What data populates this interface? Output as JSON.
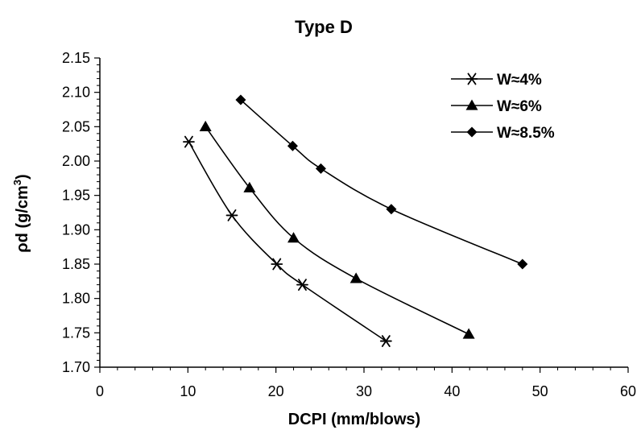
{
  "chart_data": {
    "type": "line",
    "title": "Type D",
    "xlabel": "DCPI (mm/blows)",
    "ylabel_main": "ρd (g/cm",
    "ylabel_sup": "3",
    "ylabel_close": ")",
    "xlim": [
      0,
      60
    ],
    "ylim": [
      1.7,
      2.15
    ],
    "x_ticks": [
      "0",
      "10",
      "20",
      "30",
      "40",
      "50",
      "60"
    ],
    "y_ticks": [
      "1.70",
      "1.75",
      "1.80",
      "1.85",
      "1.90",
      "1.95",
      "2.00",
      "2.05",
      "2.10",
      "2.15"
    ],
    "grid": false,
    "legend_position": "top-right",
    "series": [
      {
        "name": "W≈4%",
        "marker": "star",
        "x": [
          10.1,
          15,
          20.1,
          23,
          32.5
        ],
        "y": [
          2.028,
          1.921,
          1.85,
          1.82,
          1.738
        ]
      },
      {
        "name": "W≈6%",
        "marker": "triangle",
        "x": [
          12,
          17,
          22,
          29.1,
          41.9
        ],
        "y": [
          2.05,
          1.961,
          1.888,
          1.829,
          1.748
        ]
      },
      {
        "name": "W≈8.5%",
        "marker": "diamond",
        "x": [
          16,
          21.9,
          25.1,
          33.1,
          48
        ],
        "y": [
          2.089,
          2.022,
          1.989,
          1.93,
          1.85
        ]
      }
    ]
  }
}
